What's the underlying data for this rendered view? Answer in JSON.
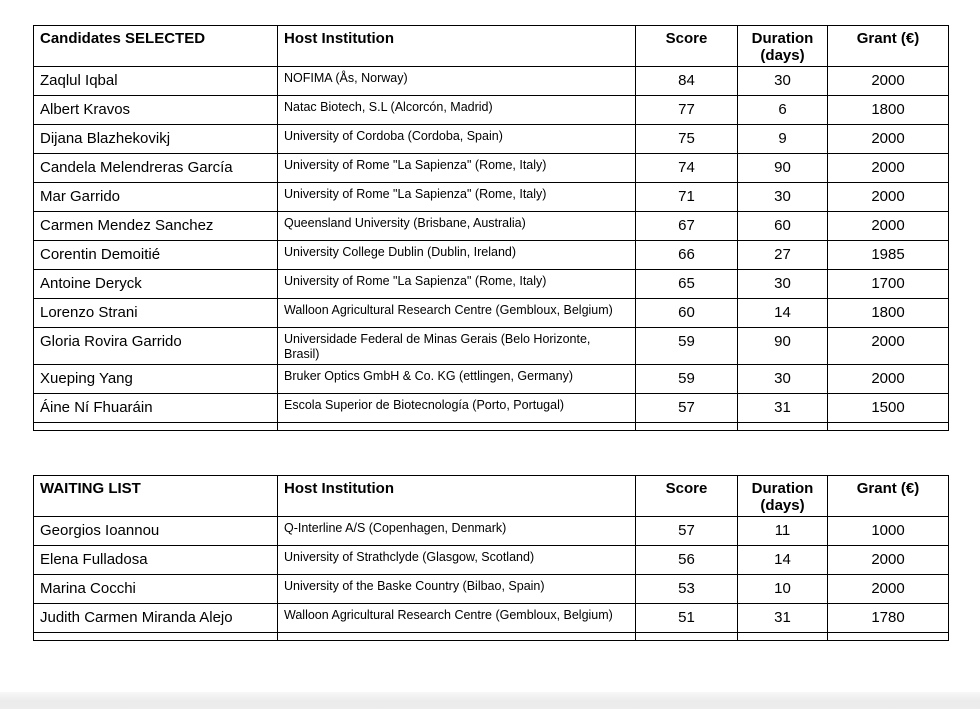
{
  "colors": {
    "page_background": "#ffffff",
    "table_border": "#000000",
    "text": "#000000",
    "footer_strip": "#ececec"
  },
  "tables": [
    {
      "id": "selected",
      "headers": [
        "Candidates SELECTED",
        "Host Institution",
        "Score",
        "Duration (days)",
        "Grant (€)"
      ],
      "rows": [
        {
          "candidate": "Zaqlul Iqbal",
          "host": "NOFIMA (Ås, Norway)",
          "score": 84,
          "duration": 30,
          "grant": 2000
        },
        {
          "candidate": "Albert Kravos",
          "host": "Natac Biotech, S.L (Alcorcón, Madrid)",
          "score": 77,
          "duration": 6,
          "grant": 1800
        },
        {
          "candidate": "Dijana Blazhekovikj",
          "host": "University of Cordoba (Cordoba, Spain)",
          "score": 75,
          "duration": 9,
          "grant": 2000
        },
        {
          "candidate": "Candela Melendreras García",
          "host": "University of Rome \"La Sapienza\" (Rome, Italy)",
          "score": 74,
          "duration": 90,
          "grant": 2000
        },
        {
          "candidate": "Mar Garrido",
          "host": "University of Rome \"La Sapienza\" (Rome, Italy)",
          "score": 71,
          "duration": 30,
          "grant": 2000
        },
        {
          "candidate": "Carmen Mendez Sanchez",
          "host": "Queensland University (Brisbane, Australia)",
          "score": 67,
          "duration": 60,
          "grant": 2000
        },
        {
          "candidate": "Corentin Demoitié",
          "host": "University College Dublin (Dublin, Ireland)",
          "score": 66,
          "duration": 27,
          "grant": 1985
        },
        {
          "candidate": "Antoine Deryck",
          "host": "University of Rome \"La Sapienza\" (Rome, Italy)",
          "score": 65,
          "duration": 30,
          "grant": 1700
        },
        {
          "candidate": "Lorenzo Strani",
          "host": "Walloon Agricultural Research Centre (Gembloux, Belgium)",
          "score": 60,
          "duration": 14,
          "grant": 1800
        },
        {
          "candidate": "Gloria Rovira Garrido",
          "host": "Universidade Federal de Minas Gerais (Belo Horizonte, Brasil)",
          "score": 59,
          "duration": 90,
          "grant": 2000
        },
        {
          "candidate": "Xueping Yang",
          "host": "Bruker Optics GmbH & Co. KG (ettlingen, Germany)",
          "score": 59,
          "duration": 30,
          "grant": 2000
        },
        {
          "candidate": "Áine Ní Fhuaráin",
          "host": "Escola Superior de Biotecnología (Porto, Portugal)",
          "score": 57,
          "duration": 31,
          "grant": 1500
        }
      ]
    },
    {
      "id": "waiting",
      "headers": [
        "WAITING LIST",
        "Host Institution",
        "Score",
        "Duration (days)",
        "Grant (€)"
      ],
      "rows": [
        {
          "candidate": "Georgios Ioannou",
          "host": "Q-Interline A/S (Copenhagen, Denmark)",
          "score": 57,
          "duration": 11,
          "grant": 1000
        },
        {
          "candidate": "Elena Fulladosa",
          "host": "University of Strathclyde (Glasgow, Scotland)",
          "score": 56,
          "duration": 14,
          "grant": 2000
        },
        {
          "candidate": "Marina Cocchi",
          "host": "University of the Baske Country (Bilbao, Spain)",
          "score": 53,
          "duration": 10,
          "grant": 2000
        },
        {
          "candidate": "Judith Carmen Miranda Alejo",
          "host": "Walloon Agricultural Research Centre (Gembloux, Belgium)",
          "score": 51,
          "duration": 31,
          "grant": 1780
        }
      ]
    }
  ]
}
